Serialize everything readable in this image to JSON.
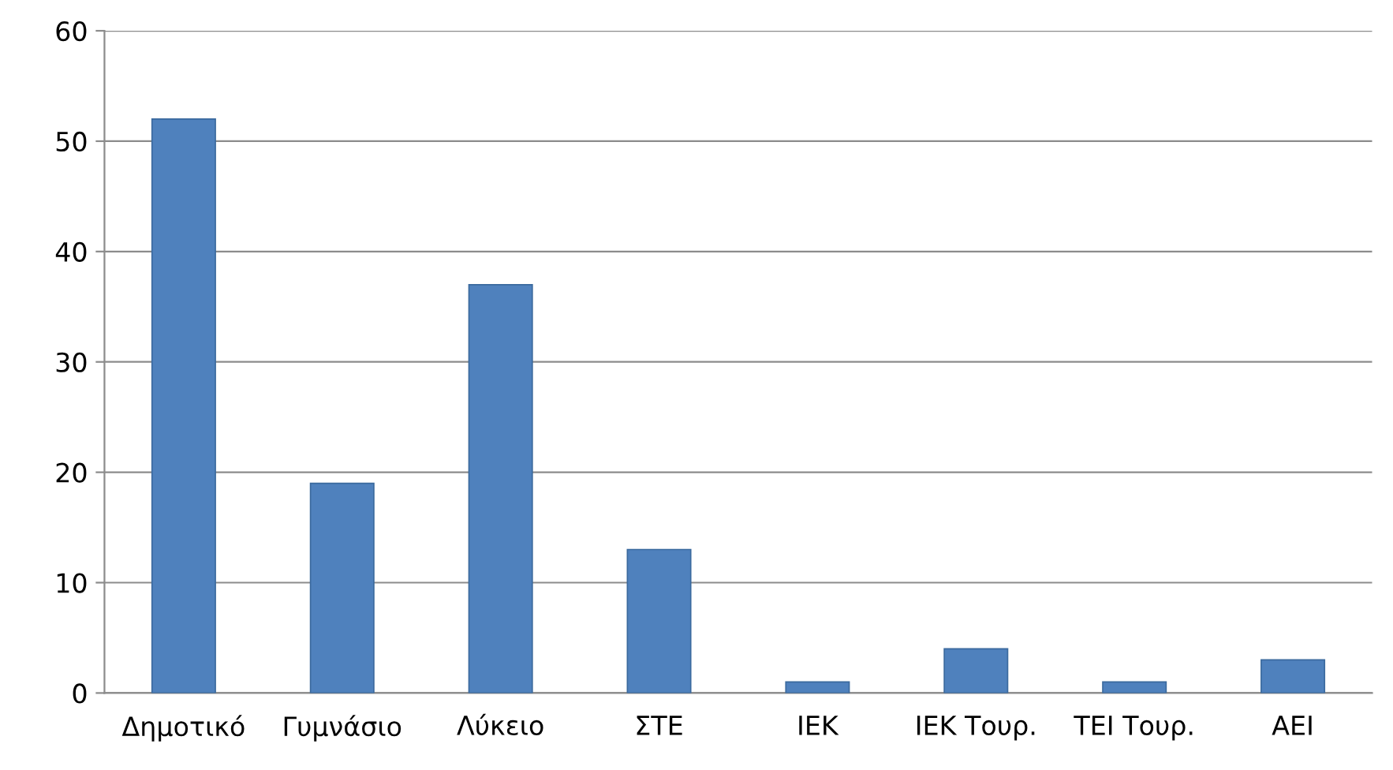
{
  "chart_data": {
    "type": "bar",
    "categories": [
      "Δημοτικό",
      "Γυμνάσιο",
      "Λύκειο",
      "ΣΤΕ",
      "ΙΕΚ",
      "ΙΕΚ Τουρ.",
      "ΤΕΙ Τουρ.",
      "ΑΕΙ"
    ],
    "values": [
      52,
      19,
      37,
      13,
      1,
      4,
      1,
      3
    ],
    "color": "#4f81bd",
    "ylim": [
      0,
      60
    ],
    "yticks": [
      0,
      10,
      20,
      30,
      40,
      50,
      60
    ],
    "grid": "y",
    "legend": false
  }
}
